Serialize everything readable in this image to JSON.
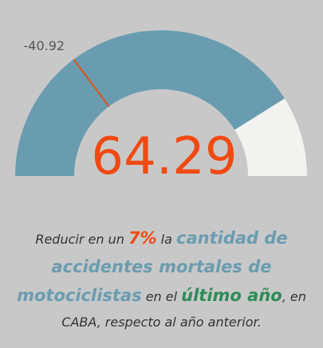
{
  "chart_data": {
    "type": "gauge",
    "value": 64.29,
    "value_label": "64.29",
    "min": -100,
    "max": 100,
    "target": -40.92,
    "target_label": "-40.92",
    "fill_color": "#6a9cb0",
    "track_color": "#f2f2f1",
    "target_color": "#e0541c",
    "value_color": "#f04a12"
  },
  "caption": {
    "p1": "Reducir en un ",
    "p2": "7%",
    "p3": " la ",
    "p4": "cantidad de",
    "p5": "accidentes mortales de",
    "p6": "motociclistas",
    "p7": " en el ",
    "p8": "último año",
    "p9": ", en",
    "p10": "CABA, respecto al año anterior."
  }
}
